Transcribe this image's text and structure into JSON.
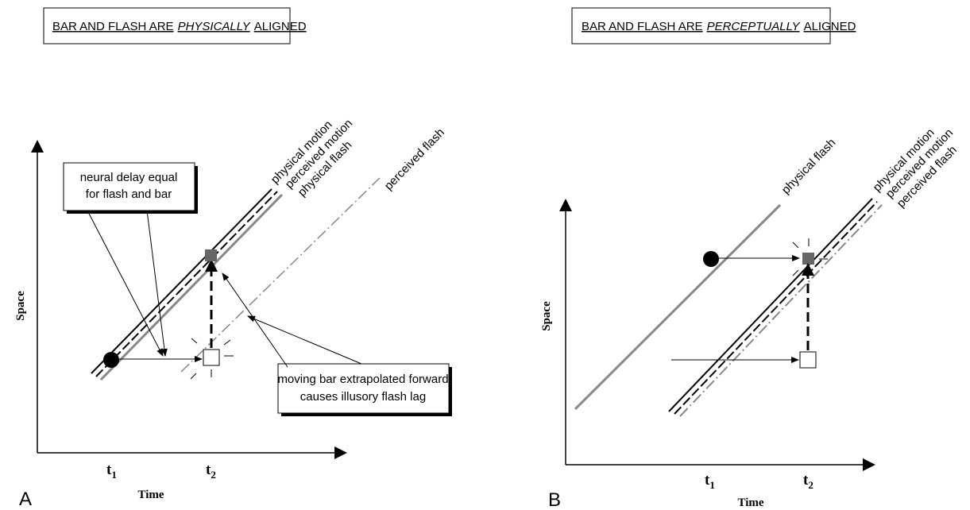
{
  "panel_a": {
    "title": {
      "prefix": "BAR AND FLASH ARE",
      "emphasis": "PHYSICALLY",
      "suffix": "ALIGNED"
    },
    "line_labels": [
      "physical motion",
      "perceived motion",
      "physical flash",
      "perceived flash"
    ],
    "callouts": [
      [
        "neural delay equal",
        "for flash and bar"
      ],
      [
        "moving bar extrapolated forward",
        "causes illusory flash lag"
      ]
    ],
    "y_axis": "Space",
    "x_axis": "Time",
    "x_ticks": [
      {
        "base": "t",
        "sub": "1"
      },
      {
        "base": "t",
        "sub": "2"
      }
    ],
    "panel_label": "A"
  },
  "panel_b": {
    "title": {
      "prefix": "BAR AND FLASH ARE",
      "emphasis": "PERCEPTUALLY",
      "suffix": "ALIGNED"
    },
    "line_labels": [
      "physical flash",
      "physical motion",
      "perceived motion",
      "perceived flash"
    ],
    "y_axis": "Space",
    "x_axis": "Time",
    "x_ticks": [
      {
        "base": "t",
        "sub": "1"
      },
      {
        "base": "t",
        "sub": "2"
      }
    ],
    "panel_label": "B"
  }
}
